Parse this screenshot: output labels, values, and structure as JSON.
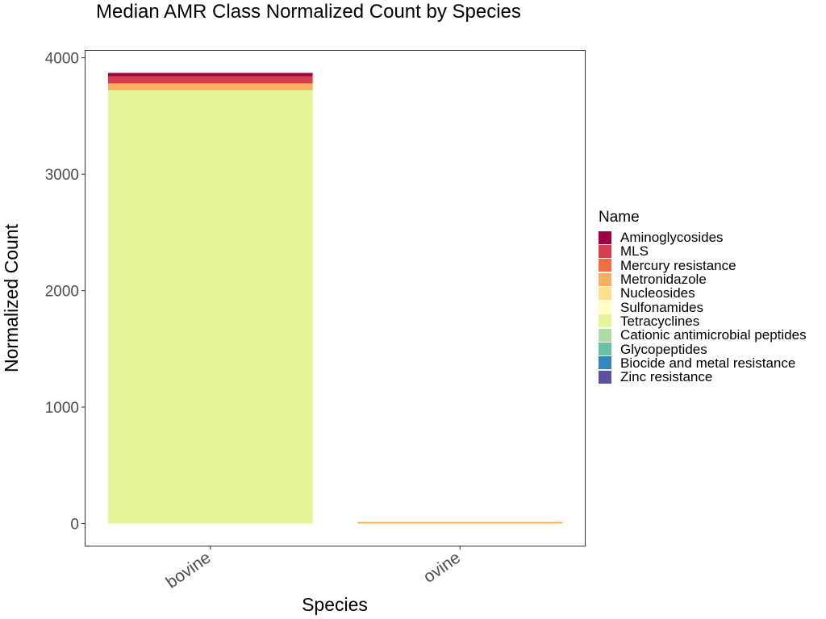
{
  "chart_data": {
    "type": "bar",
    "stacked": true,
    "title": "Median AMR Class Normalized Count by Species",
    "xlabel": "Species",
    "ylabel": "Normalized Count",
    "categories": [
      "bovine",
      "ovine"
    ],
    "ylim": [
      -190,
      4060
    ],
    "yticks": [
      0,
      1000,
      2000,
      3000,
      4000
    ],
    "grid": false,
    "legend_title": "Name",
    "legend_position": "right",
    "series": [
      {
        "name": "Aminoglycosides",
        "color": "#9E0142",
        "values": [
          30,
          0
        ]
      },
      {
        "name": "MLS",
        "color": "#D53E4F",
        "values": [
          60,
          0
        ]
      },
      {
        "name": "Mercury resistance",
        "color": "#F46D43",
        "values": [
          0,
          0
        ]
      },
      {
        "name": "Metronidazole",
        "color": "#FDAE61",
        "values": [
          60,
          8
        ]
      },
      {
        "name": "Nucleosides",
        "color": "#FEE08B",
        "values": [
          0,
          0
        ]
      },
      {
        "name": "Sulfonamides",
        "color": "#FFFFBF",
        "values": [
          0,
          0
        ]
      },
      {
        "name": "Tetracyclines",
        "color": "#E6F598",
        "values": [
          3720,
          0
        ]
      },
      {
        "name": "Cationic antimicrobial peptides",
        "color": "#ABDDA4",
        "values": [
          0,
          0
        ]
      },
      {
        "name": "Glycopeptides",
        "color": "#66C2A5",
        "values": [
          0,
          0
        ]
      },
      {
        "name": "Biocide and metal resistance",
        "color": "#3288BD",
        "values": [
          0,
          0
        ]
      },
      {
        "name": "Zinc resistance",
        "color": "#5E4FA2",
        "values": [
          0,
          0
        ]
      }
    ]
  }
}
